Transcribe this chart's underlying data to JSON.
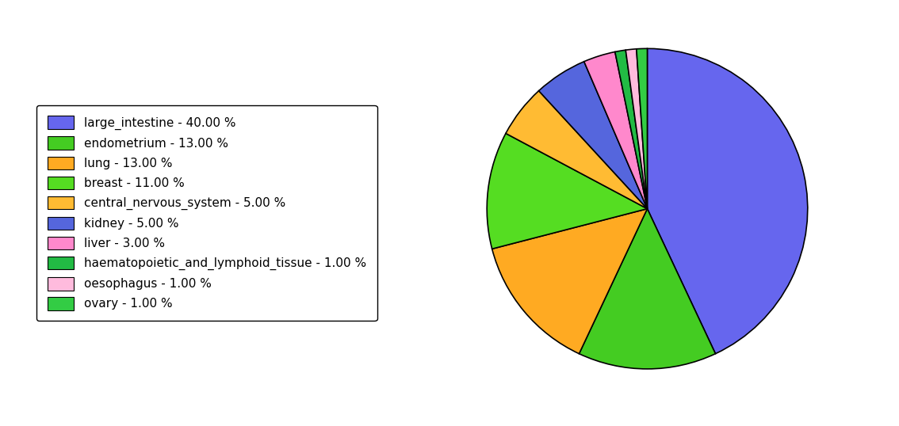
{
  "labels": [
    "large_intestine - 40.00 %",
    "endometrium - 13.00 %",
    "lung - 13.00 %",
    "breast - 11.00 %",
    "central_nervous_system - 5.00 %",
    "kidney - 5.00 %",
    "liver - 3.00 %",
    "haematopoietic_and_lymphoid_tissue - 1.00 %",
    "oesophagus - 1.00 %",
    "ovary - 1.00 %"
  ],
  "values": [
    40,
    13,
    13,
    11,
    5,
    5,
    3,
    1,
    1,
    1
  ],
  "colors": [
    "#6666ee",
    "#44cc22",
    "#ffaa22",
    "#55dd22",
    "#ffbb33",
    "#5566dd",
    "#ff88cc",
    "#22bb44",
    "#ffbbdd",
    "#33cc44"
  ],
  "background_color": "#ffffff",
  "legend_fontsize": 11,
  "startangle": 90
}
